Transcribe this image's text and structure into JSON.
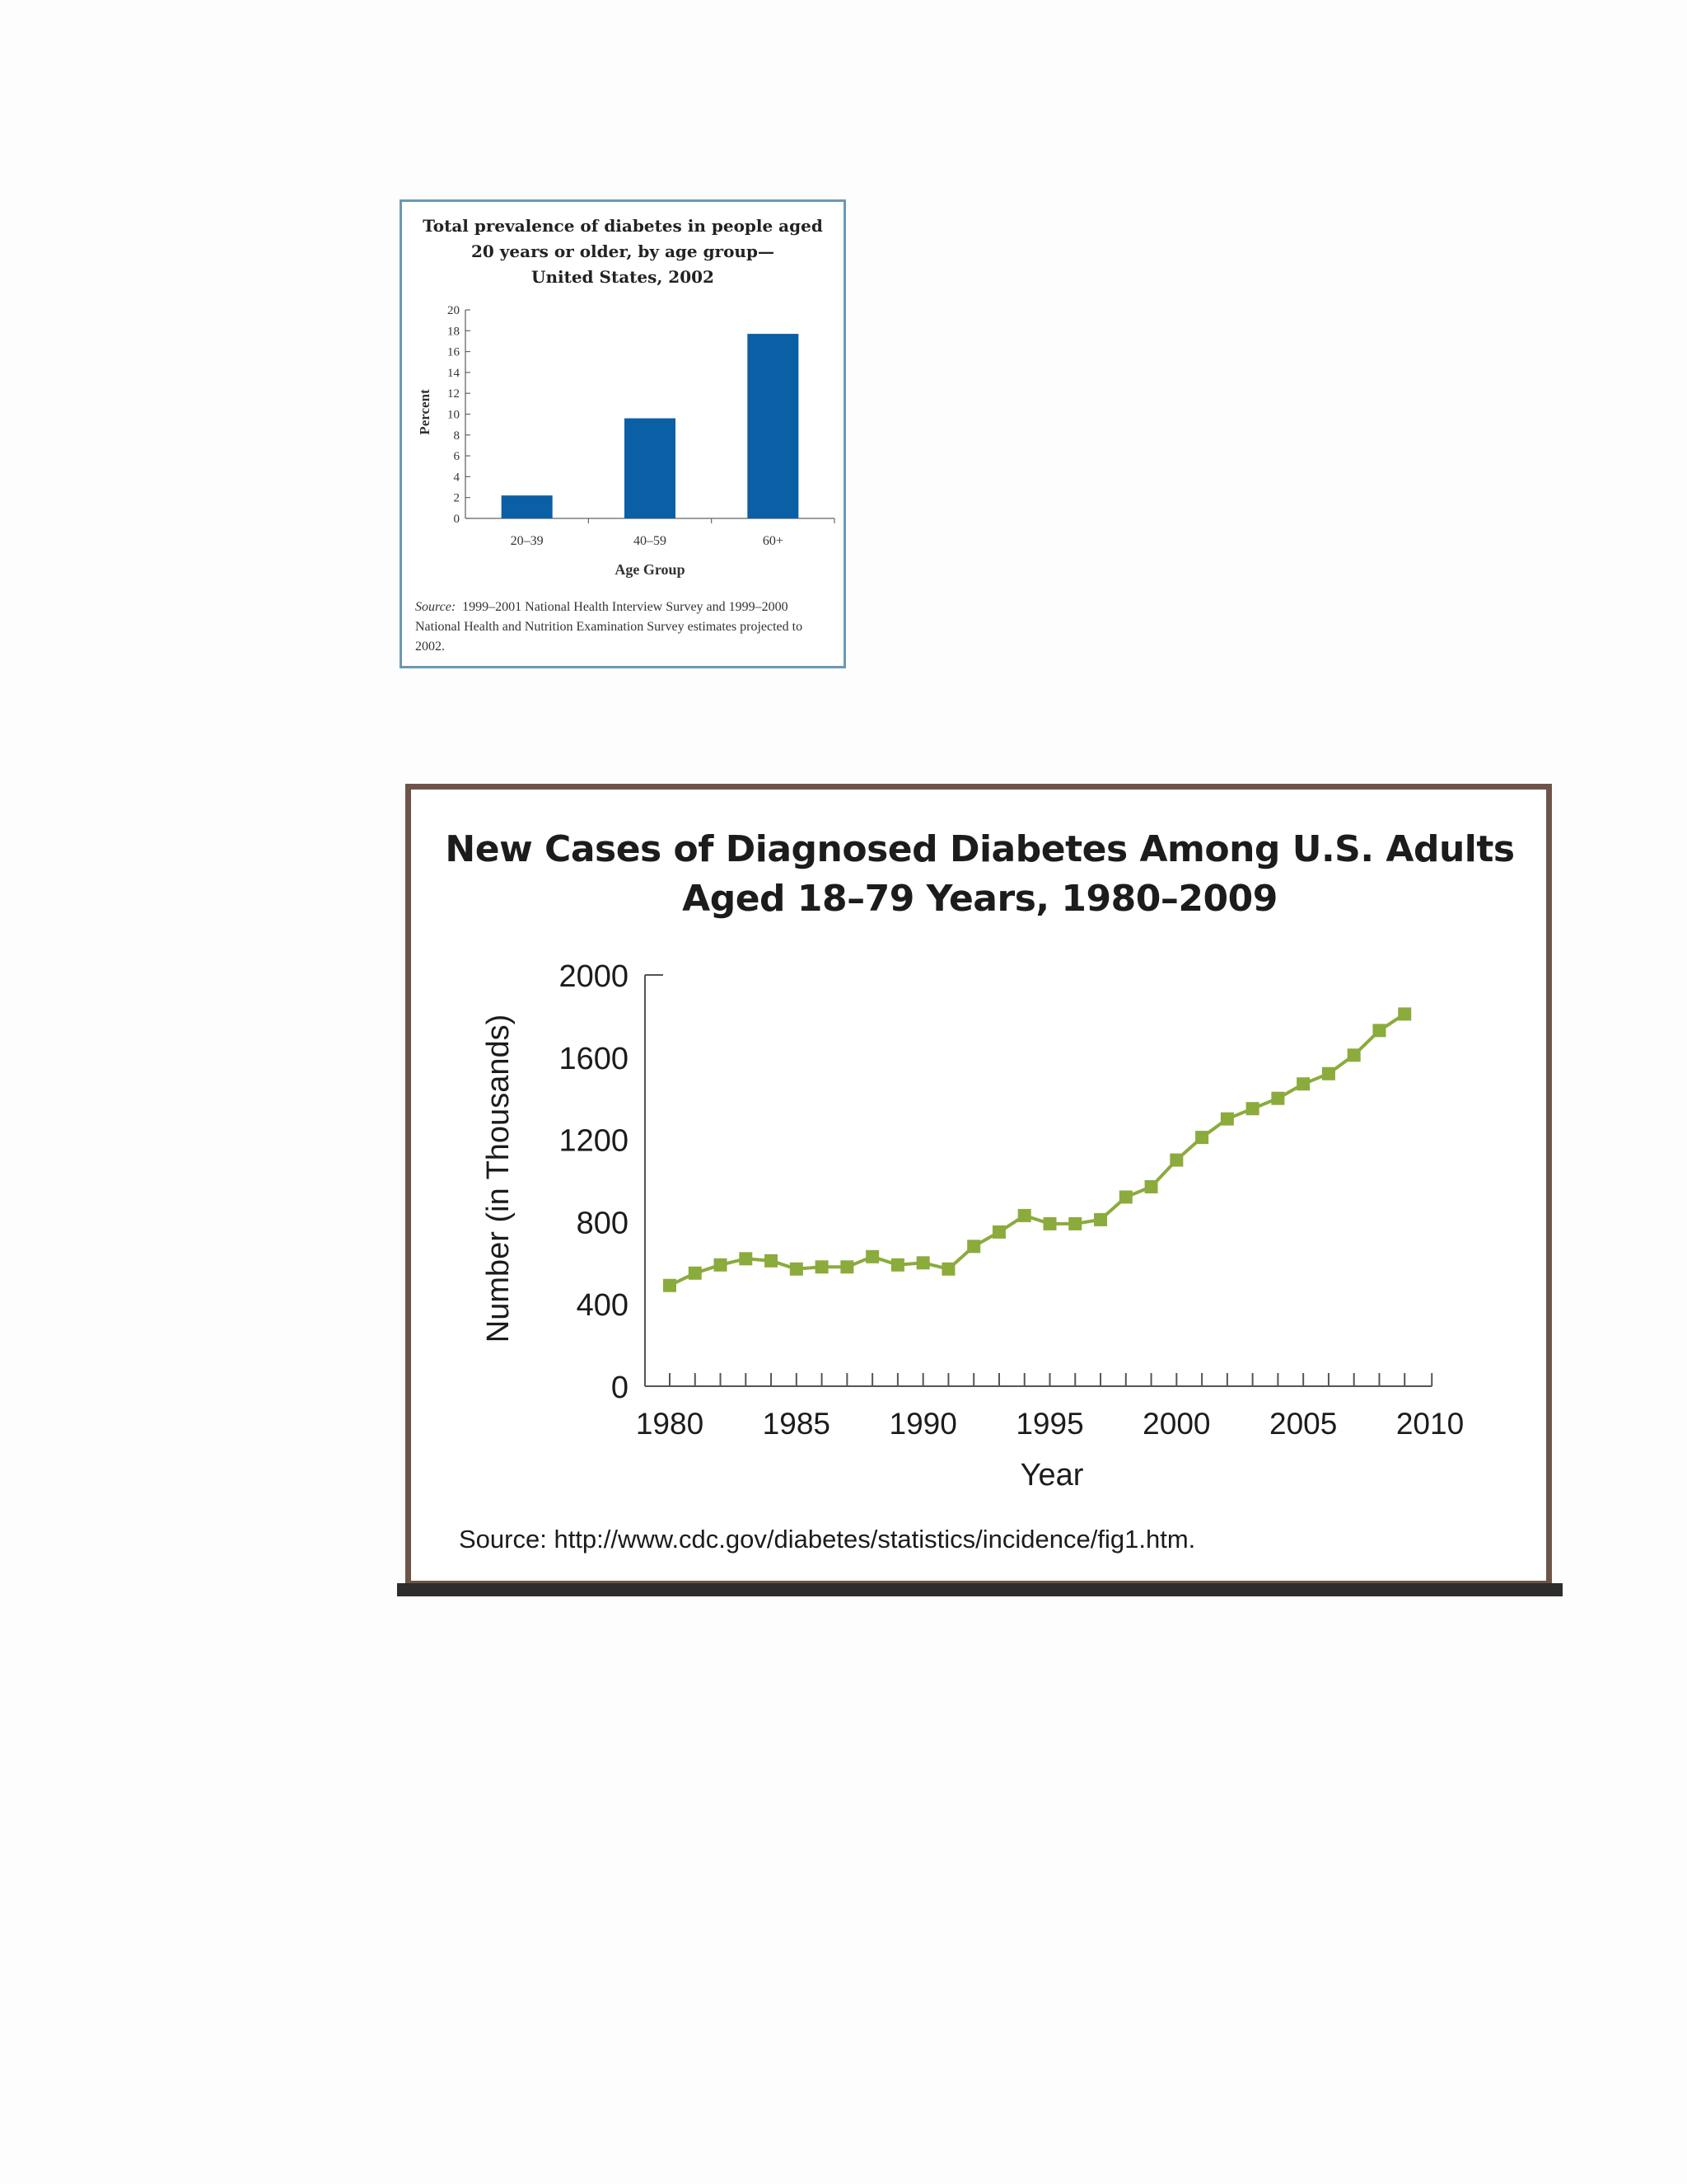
{
  "chart_data": [
    {
      "type": "bar",
      "title": "Total prevalence of diabetes in people aged\n20 years or older, by age group—\nUnited States, 2002",
      "categories": [
        "20–39",
        "40–59",
        "60+"
      ],
      "values": [
        2.2,
        9.6,
        17.7
      ],
      "xlabel": "Age Group",
      "ylabel": "Percent",
      "ylim": [
        0,
        20
      ],
      "yticks": [
        0,
        2,
        4,
        6,
        8,
        10,
        12,
        14,
        16,
        18,
        20
      ],
      "color": "#0b5fa5",
      "source_label": "Source:",
      "source_text": "1999–2001 National Health Interview Survey and 1999–2000 National Health and Nutrition Examination Survey estimates projected to 2002."
    },
    {
      "type": "line",
      "title": "New Cases of Diagnosed Diabetes Among U.S. Adults\nAged 18–79 Years, 1980–2009",
      "x": [
        1980,
        1981,
        1982,
        1983,
        1984,
        1985,
        1986,
        1987,
        1988,
        1989,
        1990,
        1991,
        1992,
        1993,
        1994,
        1995,
        1996,
        1997,
        1998,
        1999,
        2000,
        2001,
        2002,
        2003,
        2004,
        2005,
        2006,
        2007,
        2008,
        2009
      ],
      "values": [
        490,
        550,
        590,
        620,
        610,
        570,
        580,
        580,
        630,
        590,
        600,
        570,
        680,
        750,
        830,
        790,
        790,
        810,
        920,
        970,
        1100,
        1210,
        1300,
        1350,
        1400,
        1470,
        1520,
        1610,
        1730,
        1810
      ],
      "xlabel": "Year",
      "ylabel": "Number (in Thousands)",
      "ylim": [
        0,
        2000
      ],
      "xlim": [
        1980,
        2010
      ],
      "yticks": [
        0,
        400,
        800,
        1200,
        1600,
        2000
      ],
      "xticks": [
        1980,
        1985,
        1990,
        1995,
        2000,
        2005,
        2010
      ],
      "color": "#8bab3c",
      "source": "Source: http://www.cdc.gov/diabetes/statistics/incidence/fig1.htm."
    }
  ]
}
